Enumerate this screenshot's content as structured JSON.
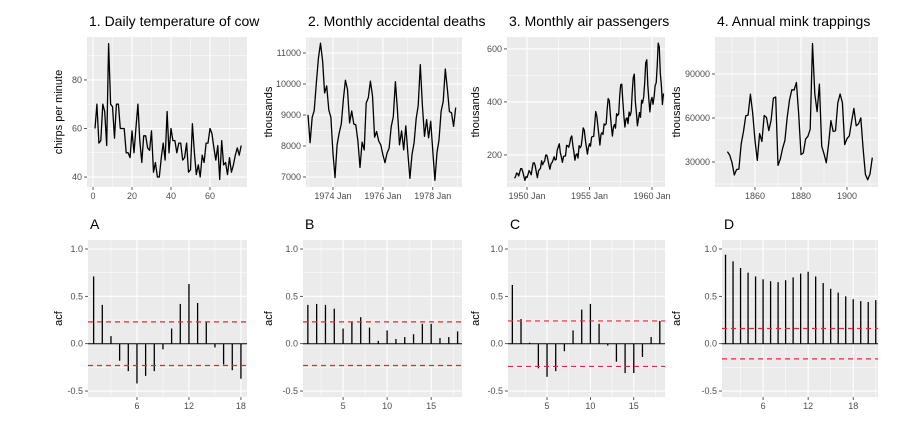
{
  "chart_data": [
    {
      "type": "line",
      "title": "1. Daily temperature of cow",
      "xlabel": "",
      "ylabel": "chirps per minute",
      "xlim": [
        -3.1,
        79
      ],
      "ylim": [
        35.9,
        97.7
      ],
      "xticks": [
        {
          "value": 0,
          "label": "0"
        },
        {
          "value": 20,
          "label": "20"
        },
        {
          "value": 40,
          "label": "40"
        },
        {
          "value": 60,
          "label": "60"
        }
      ],
      "yticks": [
        {
          "value": 40,
          "label": "40"
        },
        {
          "value": 60,
          "label": "60"
        },
        {
          "value": 80,
          "label": "80"
        }
      ],
      "x_start": 1,
      "x_step": 1,
      "values": [
        60,
        70,
        54,
        55,
        70,
        67,
        53,
        95,
        70,
        69,
        56,
        70,
        70,
        60,
        60,
        60,
        50,
        50,
        48,
        59,
        50,
        60,
        70,
        55,
        46,
        57,
        57,
        52,
        51,
        59,
        42,
        46,
        40,
        40,
        48,
        54,
        47,
        67,
        50,
        60,
        55,
        55,
        50,
        54,
        54,
        47,
        48,
        54,
        42,
        43,
        62,
        50,
        41,
        45,
        40,
        49,
        46,
        54,
        54,
        60,
        58,
        52,
        47,
        53,
        39,
        55,
        45,
        46,
        41,
        48,
        42,
        45,
        49,
        52,
        49,
        53
      ],
      "grid": true,
      "color": "#000000"
    },
    {
      "type": "line",
      "title": "2. Monthly accidental deaths",
      "xlabel": "",
      "ylabel": "thousands",
      "xlim": [
        1972.92,
        1979.17
      ],
      "ylim": [
        6677,
        11516
      ],
      "xticks": [
        {
          "value": 1974,
          "label": "1974 Jan"
        },
        {
          "value": 1976,
          "label": "1976 Jan"
        },
        {
          "value": 1978,
          "label": "1978 Jan"
        }
      ],
      "yticks": [
        {
          "value": 7000,
          "label": "7000"
        },
        {
          "value": 8000,
          "label": "8000"
        },
        {
          "value": 9000,
          "label": "9000"
        },
        {
          "value": 10000,
          "label": "10000"
        },
        {
          "value": 11000,
          "label": "11000"
        }
      ],
      "x_start": 1973,
      "x_step": 0.0833333,
      "values": [
        9007,
        8106,
        8928,
        9137,
        10017,
        10826,
        11317,
        10744,
        9713,
        9938,
        9161,
        8927,
        7750,
        6981,
        8038,
        8422,
        8714,
        9512,
        10120,
        9823,
        8743,
        9129,
        8710,
        8680,
        8162,
        7306,
        8124,
        7870,
        9387,
        9556,
        10093,
        9620,
        8285,
        8466,
        8160,
        8034,
        7717,
        7461,
        7767,
        7925,
        8623,
        8945,
        10078,
        9179,
        8037,
        8488,
        7874,
        8647,
        7792,
        6957,
        7726,
        8106,
        8890,
        9299,
        10625,
        9302,
        8314,
        8850,
        8265,
        8796,
        7836,
        6892,
        7791,
        8192,
        9115,
        9434,
        10484,
        9827,
        9110,
        9070,
        8633,
        9240
      ],
      "grid": true,
      "color": "#000000"
    },
    {
      "type": "line",
      "title": "3. Monthly air passengers",
      "xlabel": "",
      "ylabel": "thousands",
      "xlim": [
        1948.4,
        1961.04
      ],
      "ylim": [
        79,
        645
      ],
      "xticks": [
        {
          "value": 1950,
          "label": "1950 Jan"
        },
        {
          "value": 1955,
          "label": "1955 Jan"
        },
        {
          "value": 1960,
          "label": "1960 Jan"
        }
      ],
      "yticks": [
        {
          "value": 200,
          "label": "200"
        },
        {
          "value": 400,
          "label": "400"
        },
        {
          "value": 600,
          "label": "600"
        }
      ],
      "x_start": 1949,
      "x_step": 0.0833333,
      "values": [
        112,
        118,
        132,
        129,
        121,
        135,
        148,
        148,
        136,
        119,
        104,
        118,
        115,
        126,
        141,
        135,
        125,
        149,
        170,
        170,
        158,
        133,
        114,
        140,
        145,
        150,
        178,
        163,
        172,
        178,
        199,
        199,
        184,
        162,
        146,
        166,
        171,
        180,
        193,
        181,
        183,
        218,
        230,
        242,
        209,
        191,
        172,
        194,
        196,
        196,
        236,
        235,
        229,
        243,
        264,
        272,
        237,
        211,
        180,
        201,
        204,
        188,
        235,
        227,
        234,
        264,
        302,
        293,
        259,
        229,
        203,
        229,
        242,
        233,
        267,
        269,
        270,
        315,
        364,
        347,
        312,
        274,
        237,
        278,
        284,
        277,
        317,
        313,
        318,
        374,
        413,
        405,
        355,
        306,
        271,
        306,
        315,
        301,
        356,
        348,
        355,
        422,
        465,
        467,
        404,
        347,
        305,
        336,
        340,
        318,
        362,
        348,
        363,
        435,
        491,
        505,
        404,
        359,
        310,
        337,
        360,
        342,
        406,
        396,
        420,
        472,
        548,
        559,
        463,
        407,
        362,
        405,
        417,
        391,
        419,
        461,
        472,
        535,
        622,
        606,
        508,
        461,
        390,
        432
      ],
      "grid": true,
      "color": "#000000"
    },
    {
      "type": "line",
      "title": "4. Annual mink trappings",
      "xlabel": "",
      "ylabel": "thousands",
      "xlim": [
        1842.6,
        1913.5
      ],
      "ylim": [
        12955,
        115227
      ],
      "xticks": [
        {
          "value": 1860,
          "label": "1860"
        },
        {
          "value": 1880,
          "label": "1880"
        },
        {
          "value": 1900,
          "label": "1900"
        }
      ],
      "yticks": [
        {
          "value": 30000,
          "label": "30000"
        },
        {
          "value": 60000,
          "label": "60000"
        },
        {
          "value": 90000,
          "label": "90000"
        }
      ],
      "x_start": 1848,
      "x_step": 1,
      "values": [
        37123,
        34712,
        29619,
        21151,
        24859,
        25152,
        42375,
        50839,
        61581,
        61951,
        76231,
        63264,
        44730,
        31094,
        49452,
        43961,
        61727,
        60334,
        51404,
        58451,
        73575,
        74343,
        27708,
        31985,
        39266,
        44740,
        60429,
        72273,
        79214,
        79060,
        84244,
        62590,
        35072,
        36160,
        45600,
        47508,
        52290,
        110824,
        76503,
        64303,
        83023,
        40748,
        35596,
        29479,
        42264,
        58171,
        50815,
        51285,
        70229,
        76365,
        70407,
        41839,
        45978,
        47813,
        57620,
        66549,
        54673,
        55996,
        60053,
        39169,
        21534,
        17857,
        21788,
        33008
      ],
      "grid": true,
      "color": "#000000"
    },
    {
      "type": "bar",
      "title": "A",
      "xlabel": "",
      "ylabel": "acf",
      "xlim": [
        0.35,
        18.7
      ],
      "ylim": [
        -0.563,
        1.095
      ],
      "xticks": [
        {
          "value": 6,
          "label": "6"
        },
        {
          "value": 12,
          "label": "12"
        },
        {
          "value": 18,
          "label": "18"
        }
      ],
      "yticks": [
        {
          "value": -0.5,
          "label": "-0.5"
        },
        {
          "value": 0,
          "label": "0.0"
        },
        {
          "value": 0.5,
          "label": "0.5"
        },
        {
          "value": 1,
          "label": "1.0"
        }
      ],
      "lags_start": 1,
      "values": [
        0.71,
        0.41,
        0.08,
        -0.18,
        -0.29,
        -0.42,
        -0.34,
        -0.29,
        -0.06,
        0.16,
        0.42,
        0.63,
        0.43,
        0.23,
        -0.04,
        -0.22,
        -0.28,
        -0.37
      ],
      "confidence_bound": 0.23,
      "bound_color": "#e8263a",
      "grid": true
    },
    {
      "type": "bar",
      "title": "B",
      "xlabel": "",
      "ylabel": "acf",
      "xlim": [
        0.45,
        18.5
      ],
      "ylim": [
        -0.563,
        1.095
      ],
      "xticks": [
        {
          "value": 5,
          "label": "5"
        },
        {
          "value": 10,
          "label": "10"
        },
        {
          "value": 15,
          "label": "15"
        }
      ],
      "yticks": [
        {
          "value": -0.5,
          "label": "-0.5"
        },
        {
          "value": 0,
          "label": "0.0"
        },
        {
          "value": 0.5,
          "label": "0.5"
        },
        {
          "value": 1,
          "label": "1.0"
        }
      ],
      "lags_start": 1,
      "values": [
        0.41,
        0.42,
        0.41,
        0.37,
        0.16,
        0.23,
        0.28,
        0.17,
        0.03,
        0.14,
        0.05,
        0.07,
        0.1,
        0.21,
        0.21,
        0.06,
        0.07,
        0.13
      ],
      "confidence_bound": 0.23,
      "bound_color": "#e8263a",
      "grid": true
    },
    {
      "type": "bar",
      "title": "C",
      "xlabel": "",
      "ylabel": "acf",
      "xlim": [
        0.5,
        18.6
      ],
      "ylim": [
        -0.563,
        1.095
      ],
      "xticks": [
        {
          "value": 5,
          "label": "5"
        },
        {
          "value": 10,
          "label": "10"
        },
        {
          "value": 15,
          "label": "15"
        }
      ],
      "yticks": [
        {
          "value": -0.5,
          "label": "-0.5"
        },
        {
          "value": 0,
          "label": "0.0"
        },
        {
          "value": 0.5,
          "label": "0.5"
        },
        {
          "value": 1,
          "label": "1.0"
        }
      ],
      "lags_start": 1,
      "values": [
        0.62,
        0.26,
        0.01,
        -0.26,
        -0.35,
        -0.29,
        -0.08,
        0.14,
        0.36,
        0.42,
        0.21,
        -0.02,
        -0.19,
        -0.31,
        -0.31,
        -0.14,
        0.07,
        0.24
      ],
      "confidence_bound": 0.24,
      "bound_color": "#e8263a",
      "grid": true
    },
    {
      "type": "bar",
      "title": "D",
      "xlabel": "",
      "ylabel": "acf",
      "xlim": [
        0.53,
        21.3
      ],
      "ylim": [
        -0.563,
        1.095
      ],
      "xticks": [
        {
          "value": 6,
          "label": "6"
        },
        {
          "value": 12,
          "label": "12"
        },
        {
          "value": 18,
          "label": "18"
        }
      ],
      "yticks": [
        {
          "value": -0.5,
          "label": "-0.5"
        },
        {
          "value": 0,
          "label": "0.0"
        },
        {
          "value": 0.5,
          "label": "0.5"
        },
        {
          "value": 1,
          "label": "1.0"
        }
      ],
      "lags_start": 1,
      "values": [
        0.94,
        0.87,
        0.8,
        0.75,
        0.71,
        0.68,
        0.66,
        0.65,
        0.67,
        0.7,
        0.74,
        0.76,
        0.71,
        0.64,
        0.58,
        0.54,
        0.5,
        0.47,
        0.45,
        0.44,
        0.46
      ],
      "confidence_bound": 0.16,
      "bound_color": "#e8263a",
      "grid": true
    }
  ]
}
